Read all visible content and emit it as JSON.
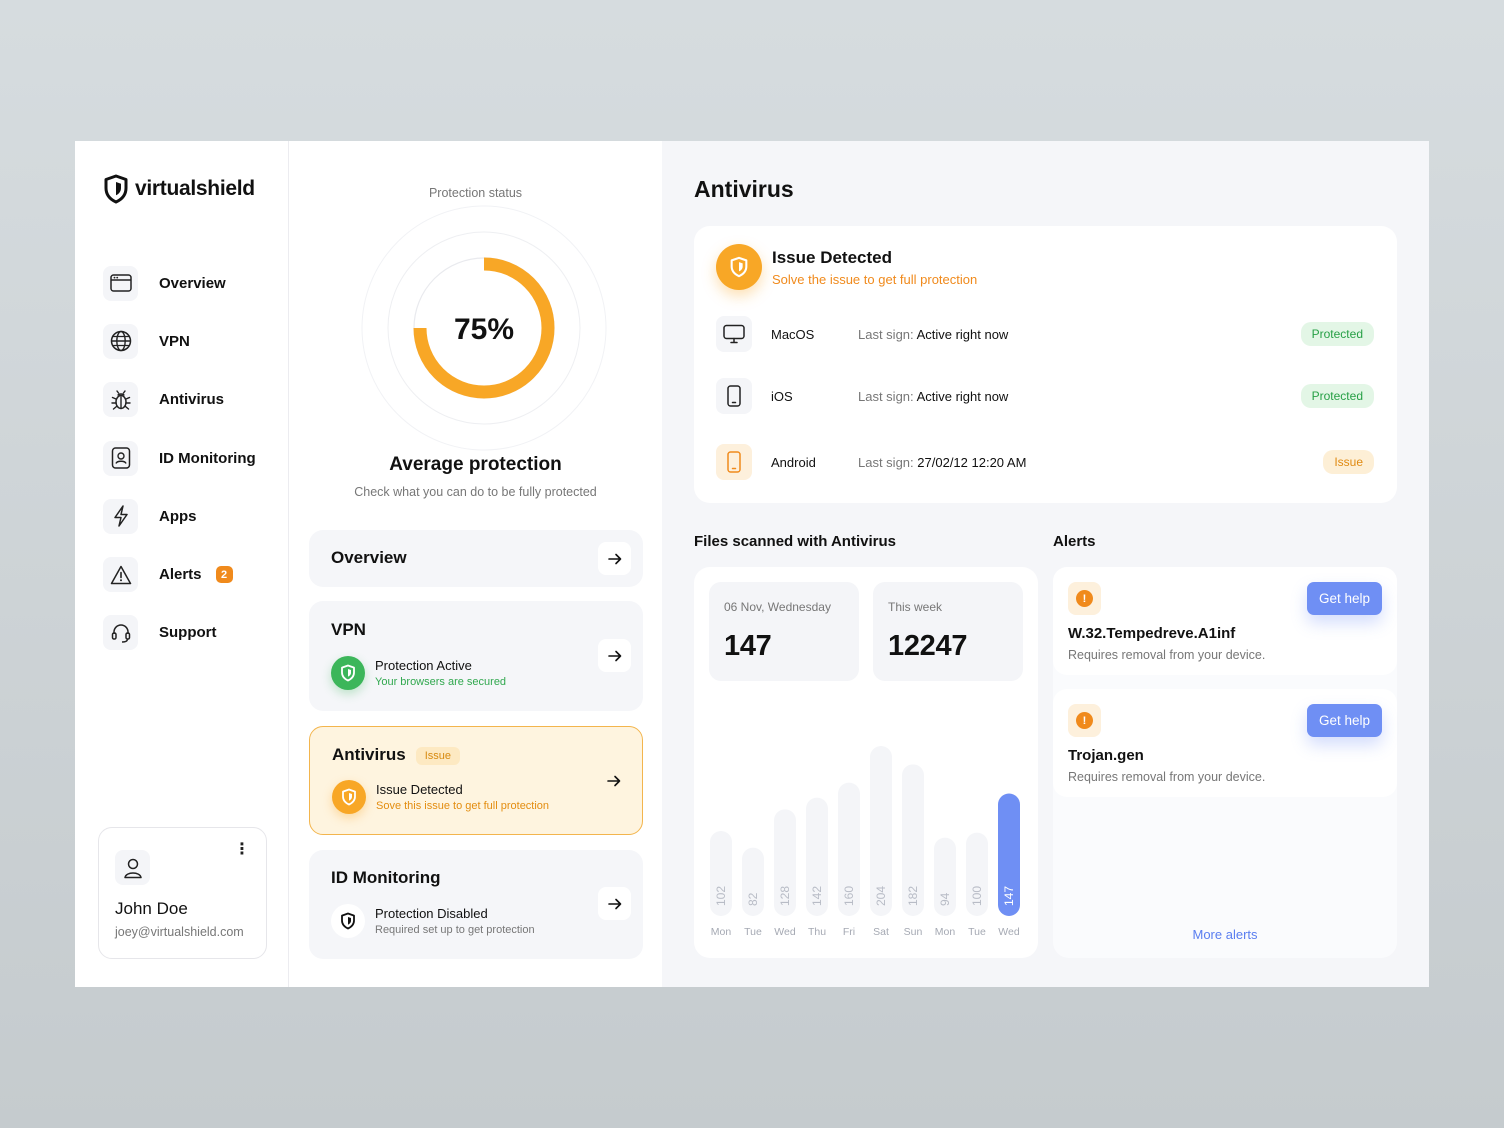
{
  "brand": {
    "name": "virtualshield"
  },
  "sidebar": {
    "items": [
      {
        "label": "Overview",
        "icon": "browser-window-icon"
      },
      {
        "label": "VPN",
        "icon": "globe-icon"
      },
      {
        "label": "Antivirus",
        "icon": "bug-icon"
      },
      {
        "label": "ID Monitoring",
        "icon": "id-badge-icon"
      },
      {
        "label": "Apps",
        "icon": "lightning-icon"
      },
      {
        "label": "Alerts",
        "icon": "warning-triangle-icon",
        "badge": "2"
      },
      {
        "label": "Support",
        "icon": "headset-icon"
      }
    ],
    "user": {
      "name": "John Doe",
      "email": "joey@virtualshield.com",
      "menu": "⋮"
    }
  },
  "protection": {
    "label": "Protection status",
    "percent_label": "75%",
    "percent": 0.75,
    "title": "Average protection",
    "subtitle": "Check what you can do to be fully protected"
  },
  "cards": {
    "overview": {
      "title": "Overview"
    },
    "vpn": {
      "title": "VPN",
      "status": "Protection Active",
      "sub": "Your browsers are secured"
    },
    "antivirus": {
      "title": "Antivirus",
      "tag": "Issue",
      "status": "Issue Detected",
      "sub": "Sove this issue to get full protection"
    },
    "id_monitoring": {
      "title": "ID Monitoring",
      "status": "Protection Disabled",
      "sub": "Required set up to get protection"
    }
  },
  "antivirus_panel": {
    "title": "Antivirus",
    "issue_title": "Issue Detected",
    "issue_sub": "Solve the issue to get full protection",
    "devices": [
      {
        "name": "MacOS",
        "last_label": "Last sign:",
        "last_value": "Active right now",
        "status": "Protected"
      },
      {
        "name": "iOS",
        "last_label": "Last sign:",
        "last_value": "Active right now",
        "status": "Protected"
      },
      {
        "name": "Android",
        "last_label": "Last sign:",
        "last_value": "27/02/12 12:20 AM",
        "status": "Issue"
      }
    ]
  },
  "files": {
    "title": "Files scanned with Antivirus",
    "today_label": "06 Nov, Wednesday",
    "today_value": "147",
    "week_label": "This week",
    "week_value": "12247"
  },
  "chart_data": {
    "type": "bar",
    "categories": [
      "Mon",
      "Tue",
      "Wed",
      "Thu",
      "Fri",
      "Sat",
      "Sun",
      "Mon",
      "Tue",
      "Wed"
    ],
    "values": [
      102,
      82,
      128,
      142,
      160,
      204,
      182,
      94,
      100,
      147
    ],
    "highlight_index": 9,
    "highlight_color": "#6f8ff4",
    "bar_color": "#f4f5f8"
  },
  "alerts": {
    "title": "Alerts",
    "items": [
      {
        "title": "W.32.Tempedreve.A1inf",
        "sub": "Requires removal from your device.",
        "button": "Get help",
        "icon_glyph": "!"
      },
      {
        "title": "Trojan.gen",
        "sub": "Requires removal from your device.",
        "button": "Get help",
        "icon_glyph": "!"
      }
    ],
    "more": "More alerts"
  },
  "colors": {
    "accent_orange": "#f8a726",
    "accent_blue": "#6f8ff4",
    "protected_bg": "#e3f6e6",
    "protected_text": "#27a046",
    "issue_bg": "#fdefd6",
    "issue_text": "#e08a12"
  }
}
